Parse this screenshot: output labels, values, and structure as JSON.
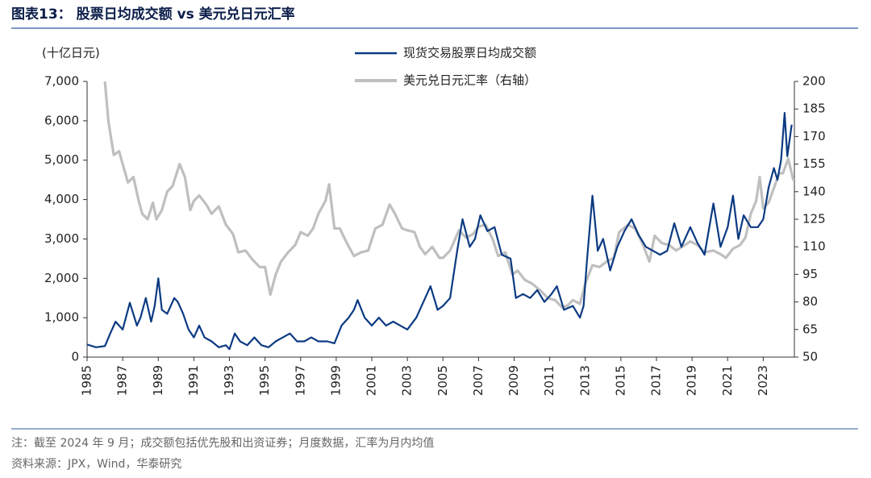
{
  "chart_data": {
    "type": "line",
    "title": "图表13： 股票日均成交额 vs 美元兑日元汇率",
    "ylabel": "(十亿日元)",
    "notes": "注：截至 2024 年 9 月；成交额包括优先股和出资证券；月度数据，汇率为月内均值",
    "source": "资料来源：JPX，Wind，华泰研究",
    "xlim": [
      1985,
      2024.75
    ],
    "xticks": [
      1985,
      1987,
      1989,
      1991,
      1993,
      1995,
      1997,
      1999,
      2001,
      2003,
      2005,
      2007,
      2009,
      2011,
      2013,
      2015,
      2017,
      2019,
      2021,
      2023
    ],
    "ylim": [
      0,
      7000
    ],
    "yticks": [
      0,
      {
        "value": 1000,
        "label": "1,000"
      },
      {
        "value": 2000,
        "label": "2,000"
      },
      {
        "value": 3000,
        "label": "3,000"
      },
      {
        "value": 4000,
        "label": "4,000"
      },
      {
        "value": 5000,
        "label": "5,000"
      },
      {
        "value": 6000,
        "label": "6,000"
      },
      {
        "value": 7000,
        "label": "7,000"
      }
    ],
    "y2lim": [
      50,
      200
    ],
    "y2ticks": [
      50,
      65,
      80,
      95,
      110,
      125,
      140,
      155,
      170,
      185,
      200
    ],
    "series": [
      {
        "name": "现货交易股票日均成交额",
        "color": "#0b3a82",
        "x": [
          1985.0,
          1985.5,
          1986.0,
          1986.3,
          1986.6,
          1987.0,
          1987.4,
          1987.8,
          1988.0,
          1988.3,
          1988.6,
          1988.8,
          1989.0,
          1989.2,
          1989.5,
          1989.9,
          1990.1,
          1990.4,
          1990.7,
          1991.0,
          1991.3,
          1991.6,
          1992.0,
          1992.4,
          1992.8,
          1993.0,
          1993.3,
          1993.6,
          1994.0,
          1994.4,
          1994.8,
          1995.2,
          1995.6,
          1996.0,
          1996.4,
          1996.8,
          1997.2,
          1997.6,
          1998.0,
          1998.5,
          1998.9,
          1999.3,
          1999.7,
          2000.0,
          2000.2,
          2000.6,
          2001.0,
          2001.4,
          2001.8,
          2002.2,
          2002.6,
          2003.0,
          2003.5,
          2003.9,
          2004.3,
          2004.7,
          2005.0,
          2005.4,
          2005.8,
          2006.1,
          2006.5,
          2006.8,
          2007.1,
          2007.5,
          2007.9,
          2008.3,
          2008.8,
          2009.1,
          2009.5,
          2009.9,
          2010.3,
          2010.7,
          2011.1,
          2011.4,
          2011.8,
          2012.3,
          2012.7,
          2012.9,
          2013.1,
          2013.4,
          2013.7,
          2014.0,
          2014.4,
          2014.8,
          2015.2,
          2015.6,
          2016.0,
          2016.4,
          2016.8,
          2017.2,
          2017.6,
          2018.0,
          2018.4,
          2018.9,
          2019.3,
          2019.7,
          2020.2,
          2020.6,
          2021.0,
          2021.3,
          2021.6,
          2021.9,
          2022.3,
          2022.7,
          2023.0,
          2023.3,
          2023.6,
          2023.8,
          2024.0,
          2024.2,
          2024.35,
          2024.6
        ],
        "values": [
          320,
          250,
          280,
          600,
          900,
          700,
          1380,
          800,
          1000,
          1500,
          900,
          1300,
          2000,
          1200,
          1100,
          1500,
          1400,
          1100,
          700,
          500,
          800,
          500,
          400,
          250,
          300,
          200,
          600,
          400,
          300,
          500,
          300,
          250,
          400,
          500,
          600,
          400,
          400,
          500,
          400,
          400,
          350,
          800,
          1000,
          1200,
          1450,
          1000,
          800,
          1000,
          800,
          900,
          800,
          700,
          1000,
          1400,
          1800,
          1200,
          1300,
          1500,
          2700,
          3500,
          2800,
          3000,
          3600,
          3200,
          3300,
          2600,
          2500,
          1500,
          1600,
          1500,
          1700,
          1400,
          1600,
          1800,
          1200,
          1300,
          1000,
          1300,
          2500,
          4100,
          2700,
          3000,
          2200,
          2800,
          3200,
          3500,
          3100,
          2800,
          2700,
          2600,
          2700,
          3400,
          2800,
          3300,
          2900,
          2600,
          3900,
          2800,
          3300,
          4100,
          3000,
          3600,
          3300,
          3300,
          3500,
          4300,
          4800,
          4500,
          5000,
          6200,
          5100,
          5900
        ]
      },
      {
        "name": "美元兑日元汇率（右轴）",
        "color": "#bfbfbf",
        "axis": "y2",
        "x": [
          1986.0,
          1986.2,
          1986.5,
          1986.8,
          1987.0,
          1987.3,
          1987.6,
          1987.9,
          1988.1,
          1988.4,
          1988.7,
          1988.9,
          1989.2,
          1989.5,
          1989.8,
          1990.2,
          1990.5,
          1990.8,
          1991.0,
          1991.3,
          1991.7,
          1992.0,
          1992.4,
          1992.8,
          1993.2,
          1993.5,
          1993.9,
          1994.3,
          1994.7,
          1995.0,
          1995.3,
          1995.6,
          1995.9,
          1996.3,
          1996.7,
          1997.0,
          1997.4,
          1997.7,
          1998.0,
          1998.4,
          1998.6,
          1998.9,
          1999.2,
          1999.6,
          2000.0,
          2000.4,
          2000.8,
          2001.2,
          2001.6,
          2002.0,
          2002.3,
          2002.7,
          2003.0,
          2003.4,
          2003.7,
          2004.0,
          2004.4,
          2004.8,
          2005.0,
          2005.4,
          2005.9,
          2006.3,
          2006.7,
          2007.0,
          2007.4,
          2007.8,
          2008.1,
          2008.5,
          2008.9,
          2009.2,
          2009.6,
          2010.0,
          2010.5,
          2010.9,
          2011.3,
          2011.7,
          2012.0,
          2012.3,
          2012.7,
          2013.0,
          2013.4,
          2013.8,
          2014.2,
          2014.6,
          2014.9,
          2015.4,
          2015.8,
          2016.2,
          2016.6,
          2016.9,
          2017.3,
          2017.7,
          2018.1,
          2018.6,
          2018.9,
          2019.3,
          2019.7,
          2020.2,
          2020.6,
          2020.9,
          2021.3,
          2021.7,
          2022.0,
          2022.3,
          2022.6,
          2022.8,
          2023.0,
          2023.3,
          2023.6,
          2023.9,
          2024.1,
          2024.4,
          2024.7
        ],
        "values": [
          200,
          178,
          160,
          162,
          155,
          145,
          148,
          135,
          128,
          125,
          134,
          125,
          130,
          140,
          143,
          155,
          148,
          130,
          135,
          138,
          133,
          128,
          132,
          122,
          117,
          107,
          108,
          103,
          99,
          99,
          84,
          95,
          102,
          107,
          111,
          118,
          116,
          120,
          128,
          135,
          144,
          120,
          120,
          112,
          105,
          107,
          108,
          120,
          122,
          133,
          128,
          120,
          119,
          118,
          110,
          106,
          110,
          104,
          104,
          108,
          119,
          115,
          117,
          121,
          122,
          114,
          105,
          107,
          95,
          97,
          92,
          90,
          86,
          82,
          81,
          77,
          78,
          81,
          79,
          90,
          100,
          99,
          102,
          104,
          118,
          122,
          120,
          112,
          102,
          116,
          112,
          111,
          108,
          111,
          113,
          111,
          107,
          108,
          106,
          104,
          109,
          111,
          115,
          128,
          135,
          148,
          131,
          134,
          142,
          150,
          150,
          158,
          146
        ]
      }
    ]
  }
}
